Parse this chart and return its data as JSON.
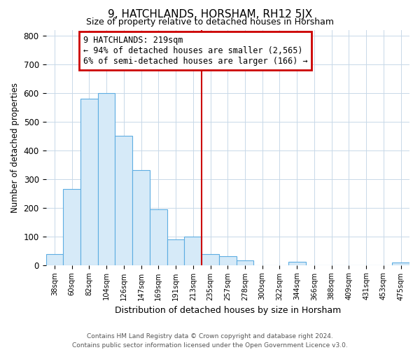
{
  "title": "9, HATCHLANDS, HORSHAM, RH12 5JX",
  "subtitle": "Size of property relative to detached houses in Horsham",
  "bar_labels": [
    "38sqm",
    "60sqm",
    "82sqm",
    "104sqm",
    "126sqm",
    "147sqm",
    "169sqm",
    "191sqm",
    "213sqm",
    "235sqm",
    "257sqm",
    "278sqm",
    "300sqm",
    "322sqm",
    "344sqm",
    "366sqm",
    "388sqm",
    "409sqm",
    "431sqm",
    "453sqm",
    "475sqm"
  ],
  "bar_heights": [
    38,
    265,
    580,
    600,
    450,
    330,
    195,
    90,
    100,
    38,
    30,
    15,
    0,
    0,
    10,
    0,
    0,
    0,
    0,
    0,
    8
  ],
  "bar_color": "#d6eaf8",
  "bar_edge_color": "#5dade2",
  "xlabel": "Distribution of detached houses by size in Horsham",
  "ylabel": "Number of detached properties",
  "ylim": [
    0,
    820
  ],
  "yticks": [
    0,
    100,
    200,
    300,
    400,
    500,
    600,
    700,
    800
  ],
  "vline_x_idx": 8,
  "vline_color": "#cc0000",
  "annotation_title": "9 HATCHLANDS: 219sqm",
  "annotation_line1": "← 94% of detached houses are smaller (2,565)",
  "annotation_line2": "6% of semi-detached houses are larger (166) →",
  "annotation_box_color": "#ffffff",
  "annotation_box_edge": "#cc0000",
  "footer_line1": "Contains HM Land Registry data © Crown copyright and database right 2024.",
  "footer_line2": "Contains public sector information licensed under the Open Government Licence v3.0.",
  "background_color": "#ffffff",
  "grid_color": "#c8d8e8"
}
